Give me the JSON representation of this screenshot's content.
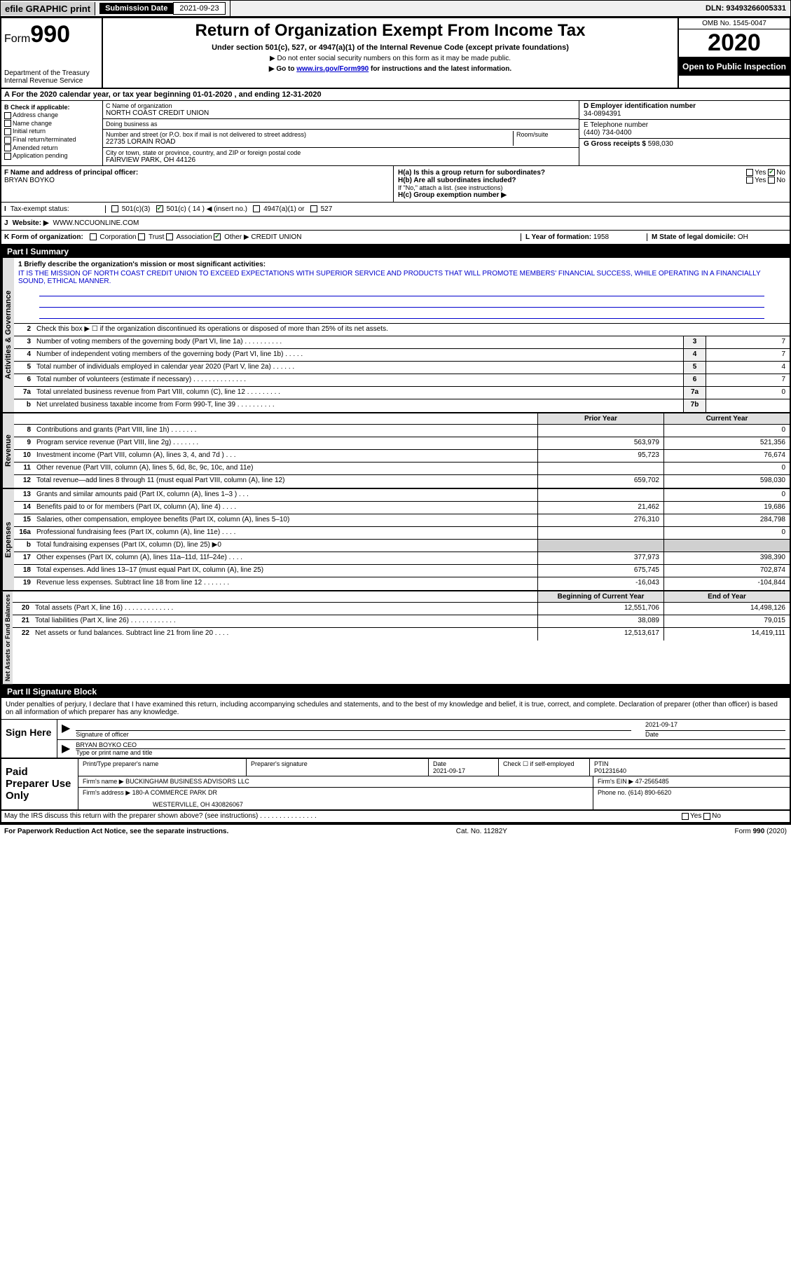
{
  "top_bar": {
    "efile": "efile GRAPHIC print",
    "submission_label": "Submission Date",
    "submission_date": "2021-09-23",
    "dln": "DLN: 93493266005331"
  },
  "header": {
    "form_label": "Form",
    "form_number": "990",
    "dept": "Department of the Treasury\nInternal Revenue Service",
    "title": "Return of Organization Exempt From Income Tax",
    "subtitle": "Under section 501(c), 527, or 4947(a)(1) of the Internal Revenue Code (except private foundations)",
    "note1": "▶ Do not enter social security numbers on this form as it may be made public.",
    "note2_pre": "▶ Go to ",
    "note2_link": "www.irs.gov/Form990",
    "note2_post": " for instructions and the latest information.",
    "omb": "OMB No. 1545-0047",
    "year": "2020",
    "inspection": "Open to Public Inspection"
  },
  "line_a": "A For the 2020 calendar year, or tax year beginning 01-01-2020    , and ending 12-31-2020",
  "box_b": {
    "label": "B Check if applicable:",
    "items": [
      "Address change",
      "Name change",
      "Initial return",
      "Final return/terminated",
      "Amended return",
      "Application pending"
    ]
  },
  "box_c": {
    "name_label": "C Name of organization",
    "name": "NORTH COAST CREDIT UNION",
    "dba_label": "Doing business as",
    "dba": "",
    "street_label": "Number and street (or P.O. box if mail is not delivered to street address)",
    "room_label": "Room/suite",
    "street": "22735 LORAIN ROAD",
    "city_label": "City or town, state or province, country, and ZIP or foreign postal code",
    "city": "FAIRVIEW PARK, OH  44126"
  },
  "box_d": {
    "label": "D Employer identification number",
    "value": "34-0894391"
  },
  "box_e": {
    "label": "E Telephone number",
    "value": "(440) 734-0400"
  },
  "box_g": {
    "label": "G Gross receipts $",
    "value": "598,030"
  },
  "box_f": {
    "label": "F  Name and address of principal officer:",
    "value": "BRYAN BOYKO"
  },
  "box_h": {
    "ha": "H(a)  Is this a group return for subordinates?",
    "ha_no": "No",
    "hb": "H(b)  Are all subordinates included?",
    "hb_note": "If \"No,\" attach a list. (see instructions)",
    "hc": "H(c)  Group exemption number ▶"
  },
  "tax_status": {
    "label": "Tax-exempt status:",
    "opt1": "501(c)(3)",
    "opt2": "501(c) ( 14 ) ◀ (insert no.)",
    "opt3": "4947(a)(1) or",
    "opt4": "527"
  },
  "box_j": {
    "label": "J",
    "website_label": "Website: ▶",
    "value": "WWW.NCCUONLINE.COM"
  },
  "box_k": {
    "label": "K Form of organization:",
    "opts": [
      "Corporation",
      "Trust",
      "Association"
    ],
    "other_label": "Other ▶",
    "other_value": "CREDIT UNION"
  },
  "box_l": {
    "label": "L Year of formation:",
    "value": "1958"
  },
  "box_m": {
    "label": "M State of legal domicile:",
    "value": "OH"
  },
  "part1": {
    "header": "Part I      Summary",
    "line1_label": "1  Briefly describe the organization's mission or most significant activities:",
    "line1_text": "IT IS THE MISSION OF NORTH COAST CREDIT UNION TO EXCEED EXPECTATIONS WITH SUPERIOR SERVICE AND PRODUCTS THAT WILL PROMOTE MEMBERS' FINANCIAL SUCCESS, WHILE OPERATING IN A FINANCIALLY SOUND, ETHICAL MANNER.",
    "line2": "Check this box ▶ ☐  if the organization discontinued its operations or disposed of more than 25% of its net assets.",
    "activities_label": "Activities & Governance",
    "lines_ag": [
      {
        "n": "3",
        "t": "Number of voting members of the governing body (Part VI, line 1a)  .   .   .   .   .   .   .   .   .   .",
        "box": "3",
        "v": "7"
      },
      {
        "n": "4",
        "t": "Number of independent voting members of the governing body (Part VI, line 1b)  .   .   .   .   .",
        "box": "4",
        "v": "7"
      },
      {
        "n": "5",
        "t": "Total number of individuals employed in calendar year 2020 (Part V, line 2a)  .   .   .   .   .   .",
        "box": "5",
        "v": "4"
      },
      {
        "n": "6",
        "t": "Total number of volunteers (estimate if necessary)   .   .   .   .   .   .   .   .   .   .   .   .   .   .",
        "box": "6",
        "v": "7"
      },
      {
        "n": "7a",
        "t": "Total unrelated business revenue from Part VIII, column (C), line 12  .   .   .   .   .   .   .   .   .",
        "box": "7a",
        "v": "0"
      },
      {
        "n": "b",
        "t": "Net unrelated business taxable income from Form 990-T, line 39   .   .   .   .   .   .   .   .   .   .",
        "box": "7b",
        "v": ""
      }
    ],
    "revenue_label": "Revenue",
    "prior_year": "Prior Year",
    "current_year": "Current Year",
    "lines_rev": [
      {
        "n": "8",
        "t": "Contributions and grants (Part VIII, line 1h)   .   .   .   .   .   .   .",
        "py": "",
        "cy": "0"
      },
      {
        "n": "9",
        "t": "Program service revenue (Part VIII, line 2g)   .   .   .   .   .   .   .",
        "py": "563,979",
        "cy": "521,356"
      },
      {
        "n": "10",
        "t": "Investment income (Part VIII, column (A), lines 3, 4, and 7d )   .   .   .",
        "py": "95,723",
        "cy": "76,674"
      },
      {
        "n": "11",
        "t": "Other revenue (Part VIII, column (A), lines 5, 6d, 8c, 9c, 10c, and 11e)",
        "py": "",
        "cy": "0"
      },
      {
        "n": "12",
        "t": "Total revenue—add lines 8 through 11 (must equal Part VIII, column (A), line 12)",
        "py": "659,702",
        "cy": "598,030"
      }
    ],
    "expenses_label": "Expenses",
    "lines_exp": [
      {
        "n": "13",
        "t": "Grants and similar amounts paid (Part IX, column (A), lines 1–3 )  .   .   .",
        "py": "",
        "cy": "0"
      },
      {
        "n": "14",
        "t": "Benefits paid to or for members (Part IX, column (A), line 4)   .   .   .   .",
        "py": "21,462",
        "cy": "19,686"
      },
      {
        "n": "15",
        "t": "Salaries, other compensation, employee benefits (Part IX, column (A), lines 5–10)",
        "py": "276,310",
        "cy": "284,798"
      },
      {
        "n": "16a",
        "t": "Professional fundraising fees (Part IX, column (A), line 11e)  .   .   .   .",
        "py": "",
        "cy": "0"
      },
      {
        "n": "b",
        "t": "Total fundraising expenses (Part IX, column (D), line 25) ▶0",
        "py": "shaded",
        "cy": "shaded"
      },
      {
        "n": "17",
        "t": "Other expenses (Part IX, column (A), lines 11a–11d, 11f–24e)   .   .   .   .",
        "py": "377,973",
        "cy": "398,390"
      },
      {
        "n": "18",
        "t": "Total expenses. Add lines 13–17 (must equal Part IX, column (A), line 25)",
        "py": "675,745",
        "cy": "702,874"
      },
      {
        "n": "19",
        "t": "Revenue less expenses. Subtract line 18 from line 12  .   .   .   .   .   .   .",
        "py": "-16,043",
        "cy": "-104,844"
      }
    ],
    "netassets_label": "Net Assets or Fund Balances",
    "boy": "Beginning of Current Year",
    "eoy": "End of Year",
    "lines_na": [
      {
        "n": "20",
        "t": "Total assets (Part X, line 16)  .   .   .   .   .   .   .   .   .   .   .   .   .",
        "py": "12,551,706",
        "cy": "14,498,126"
      },
      {
        "n": "21",
        "t": "Total liabilities (Part X, line 26)  .   .   .   .   .   .   .   .   .   .   .   .",
        "py": "38,089",
        "cy": "79,015"
      },
      {
        "n": "22",
        "t": "Net assets or fund balances. Subtract line 21 from line 20   .   .   .   .",
        "py": "12,513,617",
        "cy": "14,419,111"
      }
    ]
  },
  "part2": {
    "header": "Part II     Signature Block",
    "declaration": "Under penalties of perjury, I declare that I have examined this return, including accompanying schedules and statements, and to the best of my knowledge and belief, it is true, correct, and complete. Declaration of preparer (other than officer) is based on all information of which preparer has any knowledge."
  },
  "sign": {
    "label": "Sign Here",
    "sig_label": "Signature of officer",
    "date_label": "Date",
    "date": "2021-09-17",
    "name_title": "BRYAN BOYKO CEO",
    "name_title_label": "Type or print name and title"
  },
  "paid": {
    "label": "Paid Preparer Use Only",
    "col1": "Print/Type preparer's name",
    "col2": "Preparer's signature",
    "col3": "Date",
    "col3_val": "2021-09-17",
    "col4": "Check ☐ if self-employed",
    "col5": "PTIN",
    "col5_val": "P01231640",
    "firm_name_label": "Firm's name    ▶",
    "firm_name": "BUCKINGHAM BUSINESS ADVISORS LLC",
    "firm_ein_label": "Firm's EIN ▶",
    "firm_ein": "47-2565485",
    "firm_addr_label": "Firm's address ▶",
    "firm_addr1": "180-A COMMERCE PARK DR",
    "firm_addr2": "WESTERVILLE, OH  430826067",
    "phone_label": "Phone no.",
    "phone": "(614) 890-6620",
    "discuss": "May the IRS discuss this return with the preparer shown above? (see instructions)   .   .   .   .   .   .   .   .   .   .   .   .   .   .   ."
  },
  "footer": {
    "left": "For Paperwork Reduction Act Notice, see the separate instructions.",
    "center": "Cat. No. 11282Y",
    "right": "Form 990 (2020)"
  }
}
